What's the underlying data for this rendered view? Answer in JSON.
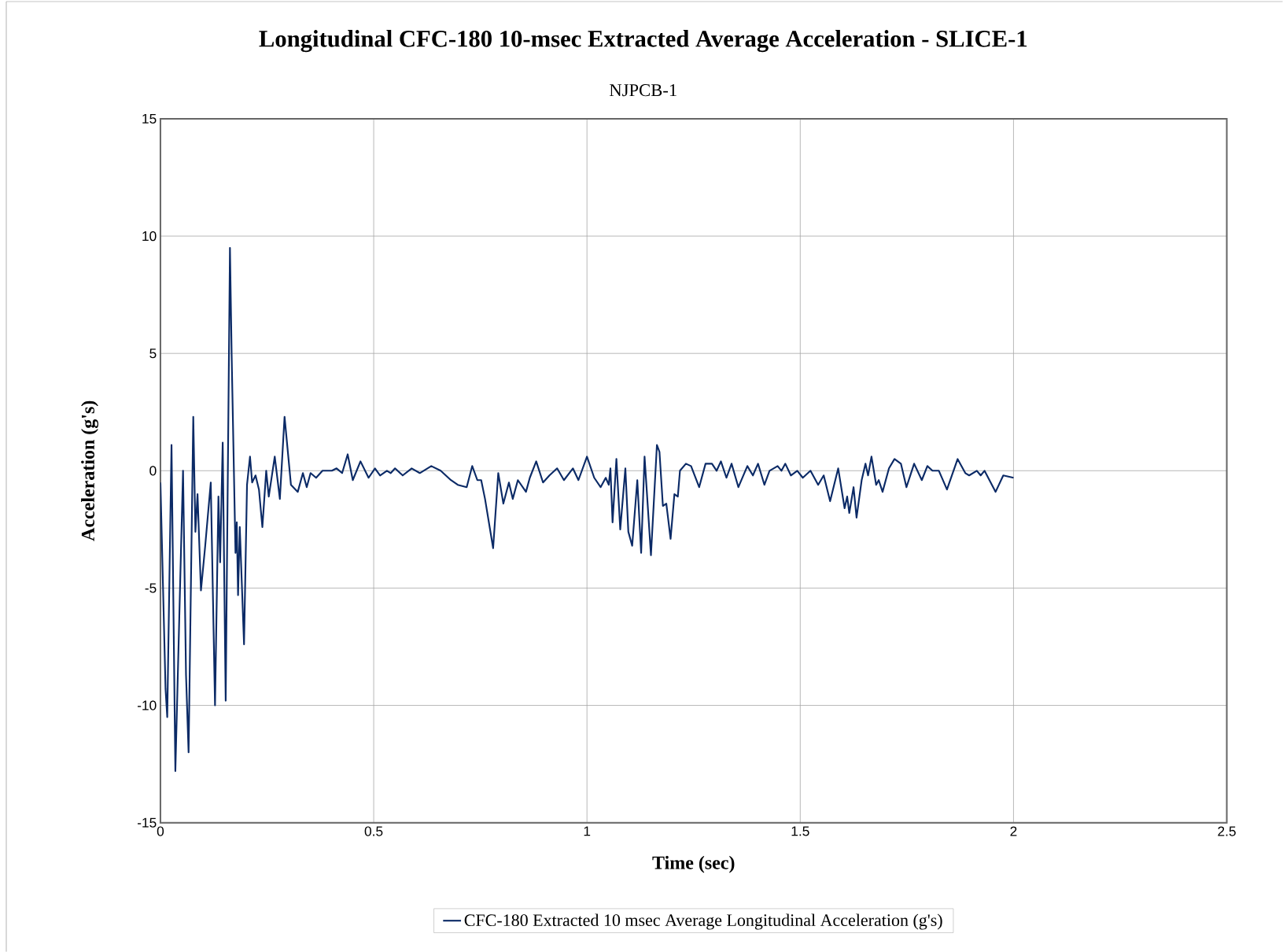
{
  "chart_data": {
    "type": "line",
    "title": "Longitudinal CFC-180 10-msec Extracted Average Acceleration - SLICE-1",
    "subtitle": "NJPCB-1",
    "xlabel": "Time (sec)",
    "ylabel": "Acceleration (g's)",
    "xlim": [
      0,
      2.5
    ],
    "xticks": [
      0,
      0.5,
      1,
      1.5,
      2,
      2.5
    ],
    "ylim": [
      -15,
      15
    ],
    "yticks": [
      -15,
      -10,
      -5,
      0,
      5,
      10,
      15
    ],
    "grid": true,
    "legend": "bottom",
    "series": [
      {
        "name": "CFC-180 Extracted 10 msec Average Longitudinal Acceleration (g's)",
        "color": "#0b2a66",
        "x": [
          0,
          0.012,
          0.016,
          0.026,
          0.035,
          0.053,
          0.06,
          0.066,
          0.077,
          0.082,
          0.087,
          0.095,
          0.105,
          0.118,
          0.128,
          0.136,
          0.14,
          0.146,
          0.153,
          0.163,
          0.167,
          0.176,
          0.179,
          0.182,
          0.186,
          0.196,
          0.203,
          0.21,
          0.215,
          0.223,
          0.231,
          0.239,
          0.248,
          0.254,
          0.268,
          0.28,
          0.291,
          0.306,
          0.322,
          0.334,
          0.343,
          0.352,
          0.365,
          0.38,
          0.402,
          0.413,
          0.426,
          0.439,
          0.451,
          0.469,
          0.488,
          0.503,
          0.515,
          0.531,
          0.54,
          0.55,
          0.568,
          0.589,
          0.608,
          0.635,
          0.657,
          0.681,
          0.697,
          0.718,
          0.731,
          0.743,
          0.752,
          0.761,
          0.78,
          0.792,
          0.804,
          0.817,
          0.826,
          0.838,
          0.857,
          0.866,
          0.881,
          0.897,
          0.912,
          0.93,
          0.946,
          0.967,
          0.98,
          1.0,
          1.017,
          1.032,
          1.044,
          1.051,
          1.055,
          1.06,
          1.069,
          1.078,
          1.09,
          1.097,
          1.106,
          1.118,
          1.127,
          1.135,
          1.15,
          1.164,
          1.17,
          1.178,
          1.186,
          1.196,
          1.205,
          1.213,
          1.218,
          1.232,
          1.244,
          1.263,
          1.278,
          1.293,
          1.304,
          1.314,
          1.327,
          1.339,
          1.355,
          1.376,
          1.389,
          1.401,
          1.416,
          1.428,
          1.447,
          1.456,
          1.465,
          1.478,
          1.493,
          1.506,
          1.524,
          1.542,
          1.555,
          1.57,
          1.589,
          1.604,
          1.61,
          1.615,
          1.625,
          1.632,
          1.644,
          1.653,
          1.659,
          1.667,
          1.678,
          1.684,
          1.693,
          1.708,
          1.721,
          1.736,
          1.749,
          1.767,
          1.785,
          1.798,
          1.81,
          1.825,
          1.844,
          1.869,
          1.887,
          1.896,
          1.914,
          1.923,
          1.932,
          1.958,
          1.976,
          2.0
        ],
        "values": [
          -0.5,
          -9.3,
          -10.5,
          1.1,
          -12.8,
          0.0,
          -8.7,
          -12.0,
          2.3,
          -2.6,
          -1.0,
          -5.1,
          -3.2,
          -0.5,
          -10.0,
          -1.1,
          -3.9,
          1.2,
          -9.8,
          9.5,
          4.9,
          -3.5,
          -2.2,
          -5.3,
          -2.4,
          -7.4,
          -0.6,
          0.6,
          -0.5,
          -0.2,
          -0.8,
          -2.4,
          0.0,
          -1.1,
          0.6,
          -1.2,
          2.3,
          -0.6,
          -0.9,
          -0.1,
          -0.7,
          -0.1,
          -0.3,
          0.0,
          0.0,
          0.1,
          -0.1,
          0.7,
          -0.4,
          0.4,
          -0.3,
          0.1,
          -0.2,
          0.0,
          -0.1,
          0.1,
          -0.2,
          0.1,
          -0.1,
          0.2,
          0.0,
          -0.4,
          -0.6,
          -0.7,
          0.2,
          -0.4,
          -0.4,
          -1.2,
          -3.3,
          -0.1,
          -1.4,
          -0.5,
          -1.2,
          -0.4,
          -0.9,
          -0.3,
          0.4,
          -0.5,
          -0.2,
          0.1,
          -0.4,
          0.1,
          -0.4,
          0.6,
          -0.3,
          -0.7,
          -0.3,
          -0.6,
          0.1,
          -2.2,
          0.5,
          -2.5,
          0.1,
          -2.6,
          -3.2,
          -0.4,
          -3.5,
          0.6,
          -3.6,
          1.1,
          0.8,
          -1.5,
          -1.4,
          -2.9,
          -1.0,
          -1.1,
          0.0,
          0.3,
          0.2,
          -0.7,
          0.3,
          0.3,
          0.0,
          0.4,
          -0.3,
          0.3,
          -0.7,
          0.2,
          -0.2,
          0.3,
          -0.6,
          0.0,
          0.2,
          0.0,
          0.3,
          -0.2,
          0.0,
          -0.3,
          0.0,
          -0.6,
          -0.2,
          -1.3,
          0.1,
          -1.6,
          -1.1,
          -1.8,
          -0.7,
          -2.0,
          -0.4,
          0.3,
          -0.2,
          0.6,
          -0.6,
          -0.4,
          -0.9,
          0.1,
          0.5,
          0.3,
          -0.7,
          0.3,
          -0.4,
          0.2,
          0.0,
          0.0,
          -0.8,
          0.5,
          -0.1,
          -0.2,
          0.0,
          -0.2,
          0.0,
          -0.9,
          -0.2,
          -0.3
        ]
      }
    ]
  }
}
